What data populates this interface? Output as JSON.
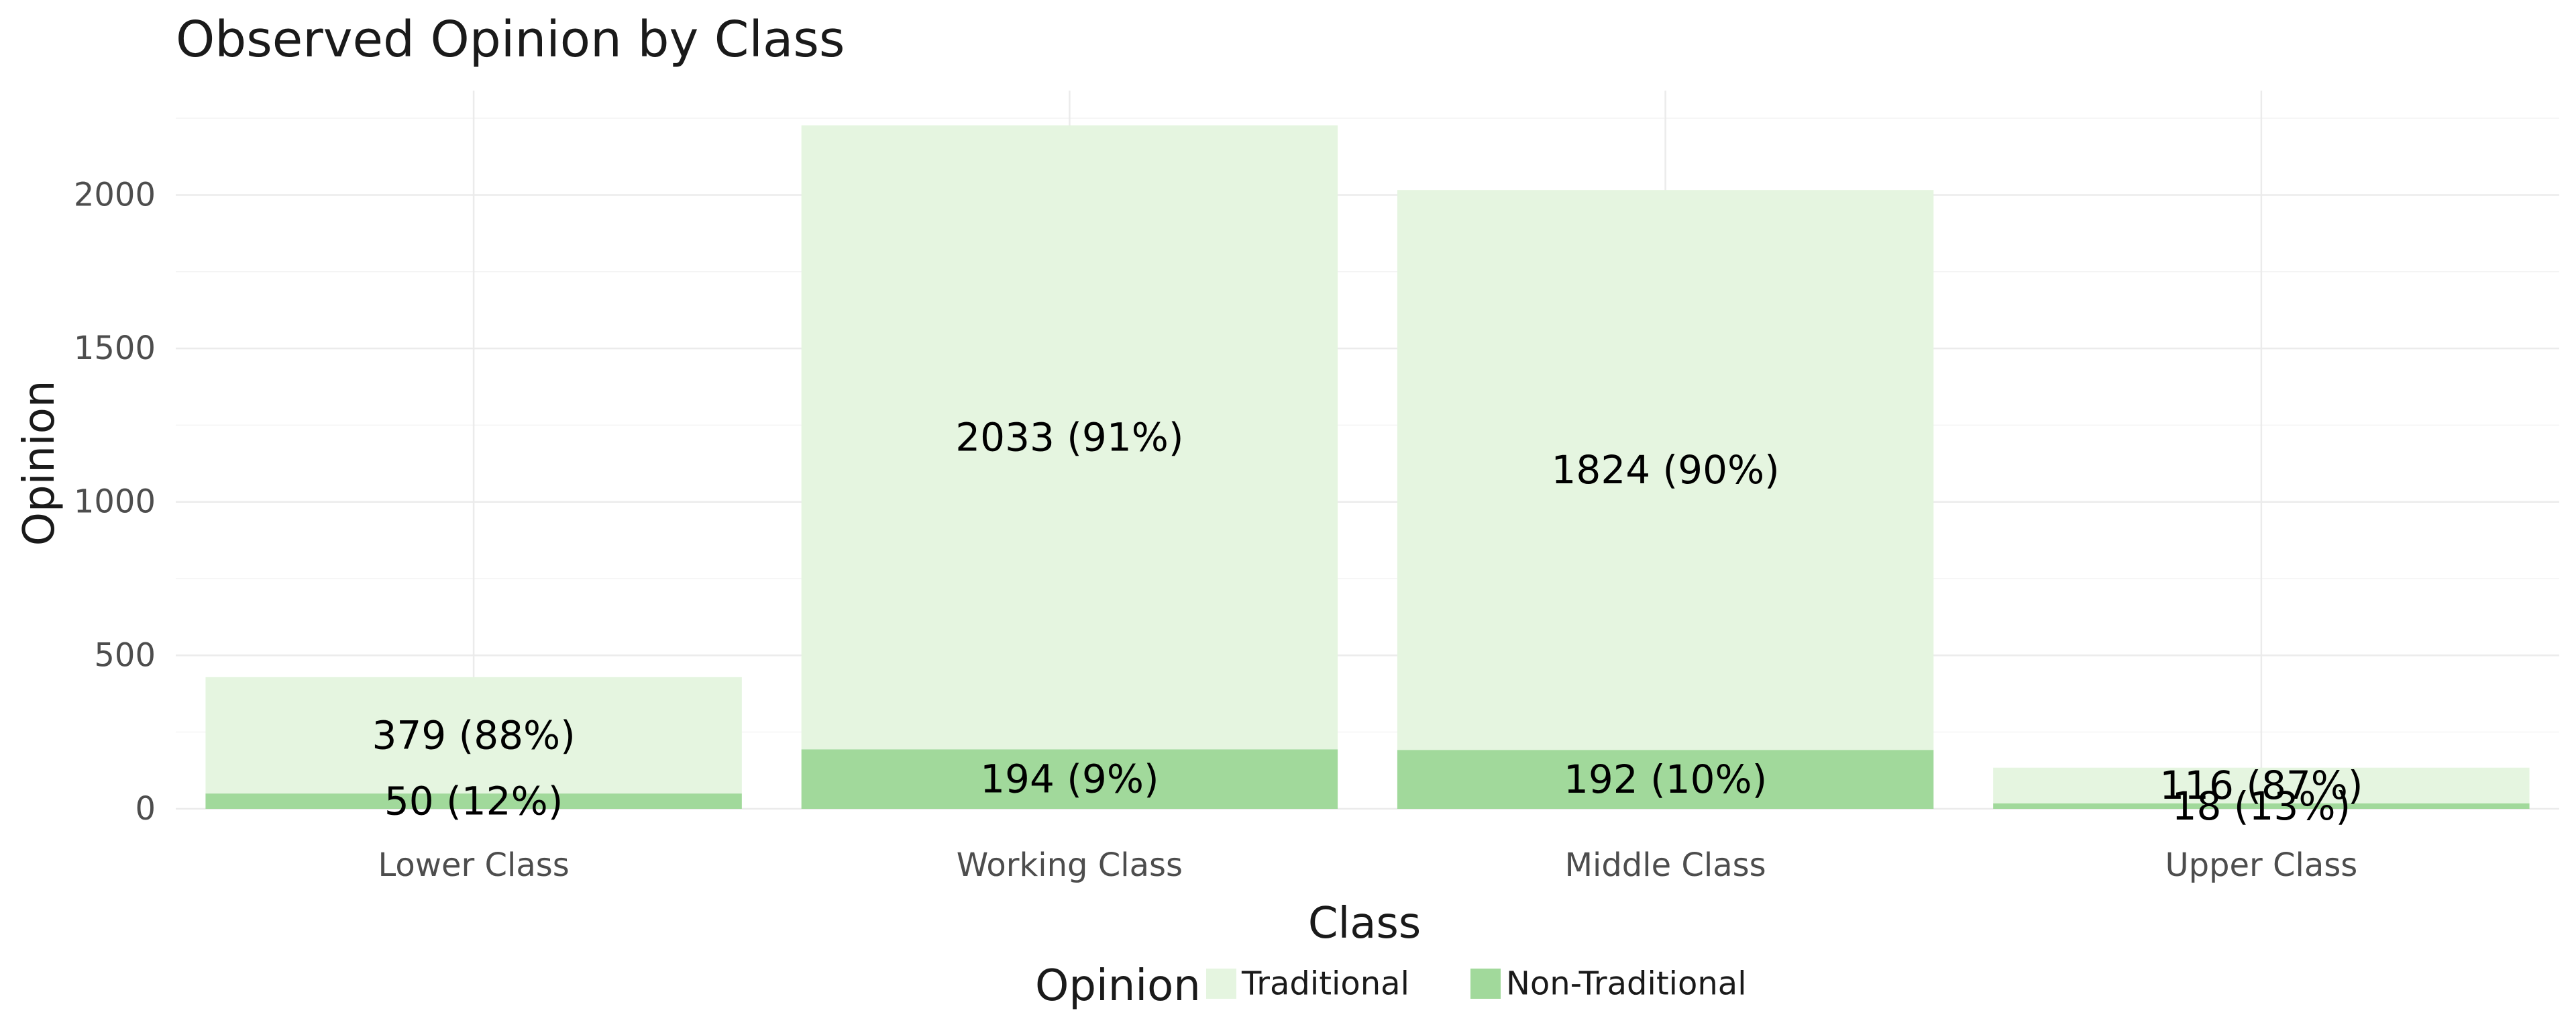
{
  "chart_data": {
    "type": "bar",
    "stacked": true,
    "title": "Observed Opinion by Class",
    "xlabel": "Class",
    "ylabel": "Opinion",
    "categories": [
      "Lower Class",
      "Working Class",
      "Middle Class",
      "Upper Class"
    ],
    "ylim": [
      0,
      2340
    ],
    "yticks": [
      0,
      500,
      1000,
      1500,
      2000
    ],
    "grid": true,
    "legend": {
      "title": "Opinion",
      "position": "bottom"
    },
    "series": [
      {
        "name": "Traditional",
        "color": "#e5f5e0",
        "values": [
          379,
          2033,
          1824,
          116
        ],
        "labels": [
          "379 (88%)",
          "2033 (91%)",
          "1824 (90%)",
          "116 (87%)"
        ]
      },
      {
        "name": "Non-Traditional",
        "color": "#a1d99b",
        "values": [
          50,
          194,
          192,
          18
        ],
        "labels": [
          "50 (12%)",
          "194 (9%)",
          "192 (10%)",
          "18 (13%)"
        ]
      }
    ]
  }
}
